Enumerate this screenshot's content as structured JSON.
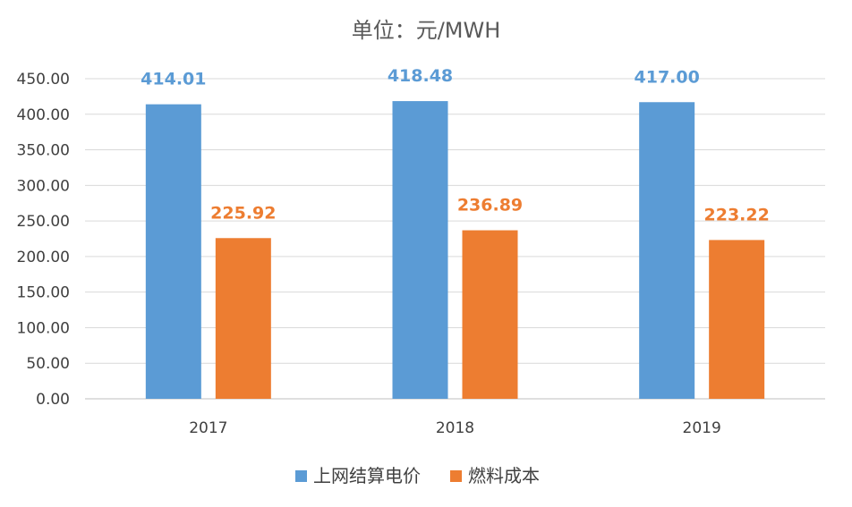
{
  "chart_data": {
    "type": "bar",
    "title": "单位：元/MWH",
    "categories": [
      "2017",
      "2018",
      "2019"
    ],
    "series": [
      {
        "name": "上网结算电价",
        "values": [
          414.01,
          418.48,
          417.0
        ],
        "labels": [
          "414.01",
          "418.48",
          "417.00"
        ],
        "color": "#5b9bd5",
        "label_color": "#5b9bd5"
      },
      {
        "name": "燃料成本",
        "values": [
          225.92,
          236.89,
          223.22
        ],
        "labels": [
          "225.92",
          "236.89",
          "223.22"
        ],
        "color": "#ed7d31",
        "label_color": "#ed7d31"
      }
    ],
    "ylim": [
      0,
      450
    ],
    "yticks": [
      "0.00",
      "50.00",
      "100.00",
      "150.00",
      "200.00",
      "250.00",
      "300.00",
      "350.00",
      "400.00",
      "450.00"
    ],
    "grid": true,
    "legend_position": "bottom"
  }
}
